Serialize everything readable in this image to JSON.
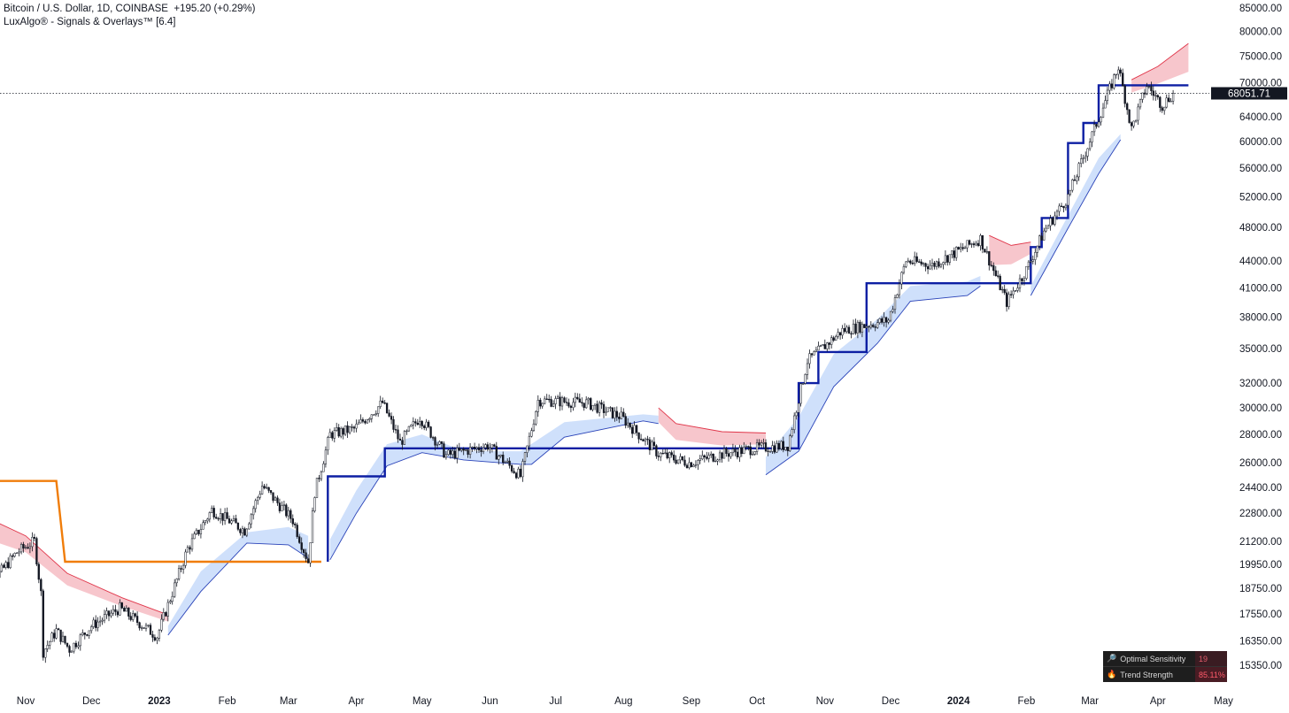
{
  "header": {
    "symbol_line": "Bitcoin / U.S. Dollar, 1D, COINBASE  +195.20 (+0.29%)",
    "indicator_line": "LuxAlgo® - Signals & Overlays™ [6.4]"
  },
  "price_label": "68051.71",
  "dashboard": {
    "rows": [
      {
        "icon": "magnifier-icon",
        "label": "Optimal Sensitivity",
        "value": "19"
      },
      {
        "icon": "fire-icon",
        "label": "Trend Strength",
        "value": "85.11%"
      }
    ]
  },
  "colors": {
    "candle": "#131722",
    "trail_bull": "#0d1fa3",
    "trail_bear": "#f07d0a",
    "cloud_bull": "#cfe0fb",
    "cloud_bear": "#f7c6cc",
    "edge_bull": "#2a43b8",
    "edge_bear": "#e0364a"
  },
  "chart_data": {
    "type": "candlestick",
    "title": "Bitcoin / U.S. Dollar, 1D, COINBASE",
    "y_scale": "log",
    "ylim": [
      15000,
      86000
    ],
    "y_ticks": [
      "85000.00",
      "80000.00",
      "75000.00",
      "70000.00",
      "64000.00",
      "60000.00",
      "56000.00",
      "52000.00",
      "48000.00",
      "44000.00",
      "41000.00",
      "38000.00",
      "35000.00",
      "32000.00",
      "30000.00",
      "28000.00",
      "26000.00",
      "24400.00",
      "22800.00",
      "21200.00",
      "19950.00",
      "18750.00",
      "17550.00",
      "16350.00",
      "15350.00"
    ],
    "x_ticks": [
      {
        "label": "Nov",
        "date": "2022-11-01"
      },
      {
        "label": "Dec",
        "date": "2022-12-01"
      },
      {
        "label": "2023",
        "date": "2023-01-01",
        "bold": true
      },
      {
        "label": "Feb",
        "date": "2023-02-01"
      },
      {
        "label": "Mar",
        "date": "2023-03-01"
      },
      {
        "label": "Apr",
        "date": "2023-04-01"
      },
      {
        "label": "May",
        "date": "2023-05-01"
      },
      {
        "label": "Jun",
        "date": "2023-06-01"
      },
      {
        "label": "Jul",
        "date": "2023-07-01"
      },
      {
        "label": "Aug",
        "date": "2023-08-01"
      },
      {
        "label": "Sep",
        "date": "2023-09-01"
      },
      {
        "label": "Oct",
        "date": "2023-10-01"
      },
      {
        "label": "Nov",
        "date": "2023-11-01"
      },
      {
        "label": "Dec",
        "date": "2023-12-01"
      },
      {
        "label": "2024",
        "date": "2024-01-01",
        "bold": true
      },
      {
        "label": "Feb",
        "date": "2024-02-01"
      },
      {
        "label": "Mar",
        "date": "2024-03-01"
      },
      {
        "label": "Apr",
        "date": "2024-04-01"
      },
      {
        "label": "May",
        "date": "2024-05-01"
      }
    ],
    "x_range": [
      "2022-10-10",
      "2024-05-17"
    ],
    "last_price": 68051.71,
    "close_series": [
      [
        "2022-10-10",
        19200
      ],
      [
        "2022-10-20",
        19500
      ],
      [
        "2022-10-28",
        20600
      ],
      [
        "2022-11-05",
        21200
      ],
      [
        "2022-11-08",
        18500
      ],
      [
        "2022-11-09",
        15900
      ],
      [
        "2022-11-15",
        16800
      ],
      [
        "2022-11-21",
        16000
      ],
      [
        "2022-12-01",
        17000
      ],
      [
        "2022-12-14",
        17800
      ],
      [
        "2022-12-31",
        16550
      ],
      [
        "2023-01-14",
        20800
      ],
      [
        "2023-01-25",
        23000
      ],
      [
        "2023-02-09",
        21800
      ],
      [
        "2023-02-17",
        24500
      ],
      [
        "2023-03-03",
        22400
      ],
      [
        "2023-03-10",
        20100
      ],
      [
        "2023-03-13",
        24100
      ],
      [
        "2023-03-20",
        28000
      ],
      [
        "2023-03-31",
        28400
      ],
      [
        "2023-04-13",
        30400
      ],
      [
        "2023-04-21",
        27400
      ],
      [
        "2023-04-30",
        29300
      ],
      [
        "2023-05-12",
        26500
      ],
      [
        "2023-05-31",
        27200
      ],
      [
        "2023-06-15",
        25100
      ],
      [
        "2023-06-23",
        30600
      ],
      [
        "2023-07-15",
        30400
      ],
      [
        "2023-07-31",
        29300
      ],
      [
        "2023-08-17",
        26600
      ],
      [
        "2023-08-31",
        26000
      ],
      [
        "2023-09-15",
        26600
      ],
      [
        "2023-09-30",
        27000
      ],
      [
        "2023-10-15",
        27200
      ],
      [
        "2023-10-24",
        33900
      ],
      [
        "2023-11-09",
        36700
      ],
      [
        "2023-11-30",
        37700
      ],
      [
        "2023-12-08",
        44000
      ],
      [
        "2023-12-20",
        43500
      ],
      [
        "2024-01-11",
        46600
      ],
      [
        "2024-01-23",
        39500
      ],
      [
        "2024-02-01",
        43000
      ],
      [
        "2024-02-09",
        47500
      ],
      [
        "2024-02-20",
        52000
      ],
      [
        "2024-03-05",
        63800
      ],
      [
        "2024-03-14",
        73000
      ],
      [
        "2024-03-20",
        62000
      ],
      [
        "2024-03-27",
        69500
      ],
      [
        "2024-04-03",
        66000
      ],
      [
        "2024-04-08",
        68051.71
      ]
    ],
    "trailing_stop": [
      {
        "trend": "bear",
        "points": [
          [
            "2022-10-10",
            24800
          ],
          [
            "2022-11-15",
            24800
          ],
          [
            "2022-11-19",
            20100
          ],
          [
            "2023-03-16",
            20100
          ]
        ]
      },
      {
        "trend": "bull",
        "points": [
          [
            "2023-03-19",
            20100
          ],
          [
            "2023-03-19",
            25100
          ],
          [
            "2023-04-14",
            25100
          ],
          [
            "2023-04-14",
            27000
          ],
          [
            "2023-09-18",
            27000
          ],
          [
            "2023-09-25",
            27000
          ],
          [
            "2023-10-20",
            27000
          ],
          [
            "2023-10-20",
            32000
          ],
          [
            "2023-10-29",
            32000
          ],
          [
            "2023-10-29",
            34700
          ],
          [
            "2023-11-20",
            34700
          ],
          [
            "2023-11-20",
            41500
          ],
          [
            "2024-02-03",
            41500
          ],
          [
            "2024-02-03",
            45600
          ],
          [
            "2024-02-08",
            45600
          ],
          [
            "2024-02-08",
            49200
          ],
          [
            "2024-02-20",
            49200
          ],
          [
            "2024-02-20",
            59800
          ],
          [
            "2024-02-27",
            59800
          ],
          [
            "2024-02-27",
            63000
          ],
          [
            "2024-03-05",
            63000
          ],
          [
            "2024-03-05",
            69500
          ],
          [
            "2024-04-15",
            69500
          ]
        ]
      }
    ],
    "cloud_segments": [
      {
        "trend": "bear",
        "upper": [
          [
            "2022-10-10",
            22800
          ],
          [
            "2022-11-01",
            21500
          ],
          [
            "2022-11-20",
            19500
          ],
          [
            "2022-12-15",
            18300
          ],
          [
            "2023-01-05",
            17500
          ]
        ],
        "lower": [
          [
            "2023-01-05",
            17200
          ],
          [
            "2022-12-15",
            17900
          ],
          [
            "2022-11-20",
            18900
          ],
          [
            "2022-11-01",
            20600
          ],
          [
            "2022-10-10",
            21500
          ]
        ]
      },
      {
        "trend": "bull",
        "upper": [
          [
            "2023-01-05",
            17000
          ],
          [
            "2023-01-20",
            19600
          ],
          [
            "2023-02-10",
            21700
          ],
          [
            "2023-03-01",
            22000
          ],
          [
            "2023-03-10",
            21500
          ]
        ],
        "lower": [
          [
            "2023-03-10",
            20300
          ],
          [
            "2023-03-01",
            21000
          ],
          [
            "2023-02-10",
            21100
          ],
          [
            "2023-01-20",
            18600
          ],
          [
            "2023-01-05",
            16600
          ]
        ]
      },
      {
        "trend": "bull",
        "upper": [
          [
            "2023-03-20",
            21300
          ],
          [
            "2023-04-01",
            24200
          ],
          [
            "2023-04-15",
            27300
          ],
          [
            "2023-05-01",
            28000
          ],
          [
            "2023-05-20",
            26800
          ],
          [
            "2023-06-15",
            26800
          ],
          [
            "2023-07-05",
            28900
          ],
          [
            "2023-08-10",
            29500
          ],
          [
            "2023-08-17",
            29400
          ]
        ],
        "lower": [
          [
            "2023-08-17",
            28800
          ],
          [
            "2023-08-10",
            29000
          ],
          [
            "2023-07-05",
            27800
          ],
          [
            "2023-06-20",
            25900
          ],
          [
            "2023-06-15",
            25900
          ],
          [
            "2023-05-20",
            26200
          ],
          [
            "2023-05-01",
            26700
          ],
          [
            "2023-04-15",
            25800
          ],
          [
            "2023-04-01",
            22800
          ],
          [
            "2023-03-20",
            20200
          ]
        ]
      },
      {
        "trend": "bear",
        "upper": [
          [
            "2023-08-17",
            30000
          ],
          [
            "2023-08-25",
            28800
          ],
          [
            "2023-09-15",
            28200
          ],
          [
            "2023-10-05",
            28100
          ]
        ],
        "lower": [
          [
            "2023-10-05",
            27300
          ],
          [
            "2023-09-15",
            27200
          ],
          [
            "2023-08-25",
            27600
          ],
          [
            "2023-08-17",
            28900
          ]
        ]
      },
      {
        "trend": "bull",
        "upper": [
          [
            "2023-10-05",
            26400
          ],
          [
            "2023-10-20",
            29300
          ],
          [
            "2023-11-05",
            34500
          ],
          [
            "2023-11-25",
            37800
          ],
          [
            "2023-12-10",
            41200
          ],
          [
            "2024-01-05",
            41700
          ],
          [
            "2024-01-11",
            42300
          ]
        ],
        "lower": [
          [
            "2024-01-11",
            41200
          ],
          [
            "2024-01-05",
            40200
          ],
          [
            "2023-12-10",
            39600
          ],
          [
            "2023-11-25",
            35500
          ],
          [
            "2023-11-05",
            31700
          ],
          [
            "2023-10-20",
            26800
          ],
          [
            "2023-10-05",
            25200
          ]
        ]
      },
      {
        "trend": "bear",
        "upper": [
          [
            "2024-01-15",
            47000
          ],
          [
            "2024-01-25",
            45800
          ],
          [
            "2024-02-03",
            46200
          ]
        ],
        "lower": [
          [
            "2024-02-03",
            44800
          ],
          [
            "2024-01-25",
            43600
          ],
          [
            "2024-01-15",
            43500
          ]
        ]
      },
      {
        "trend": "bull",
        "upper": [
          [
            "2024-02-03",
            41200
          ],
          [
            "2024-02-20",
            49500
          ],
          [
            "2024-03-05",
            57500
          ],
          [
            "2024-03-15",
            61200
          ]
        ],
        "lower": [
          [
            "2024-03-15",
            60300
          ],
          [
            "2024-03-05",
            55200
          ],
          [
            "2024-02-20",
            47900
          ],
          [
            "2024-02-03",
            40200
          ]
        ]
      },
      {
        "trend": "bear",
        "upper": [
          [
            "2024-03-20",
            70500
          ],
          [
            "2024-04-01",
            73000
          ],
          [
            "2024-04-15",
            77500
          ]
        ],
        "lower": [
          [
            "2024-04-15",
            72000
          ],
          [
            "2024-04-01",
            69800
          ],
          [
            "2024-03-20",
            68200
          ]
        ]
      }
    ]
  }
}
